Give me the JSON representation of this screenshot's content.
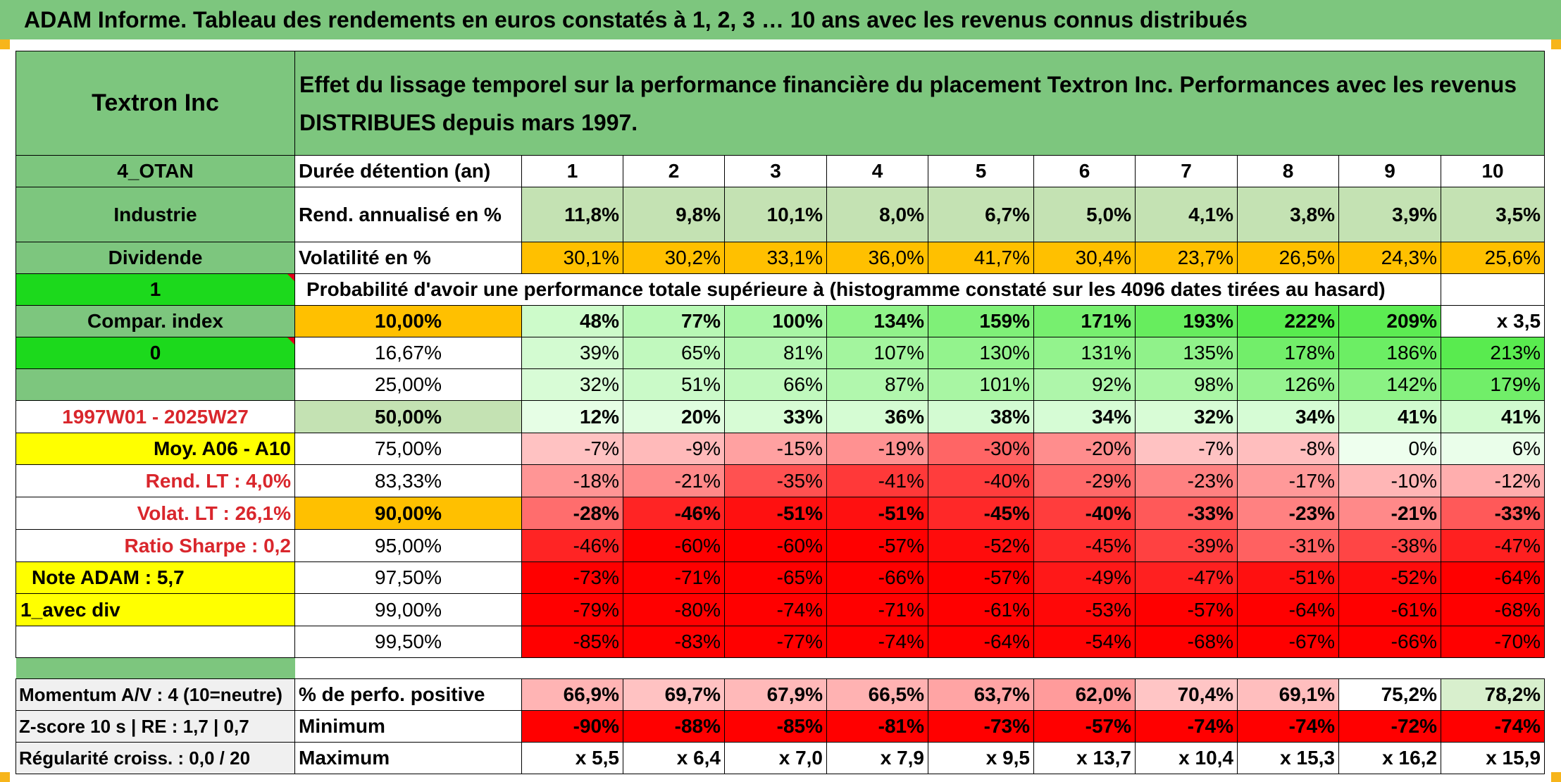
{
  "banner": "ADAM Informe. Tableau des rendements en euros constatés à 1, 2, 3 … 10 ans avec les revenus connus distribués",
  "colors": {
    "accent_green": "#7dc67e",
    "light_green": "#c4e2b3",
    "orange": "#ffc000",
    "yellow": "#ffff00",
    "bright_green": "#1cd91c",
    "red": "#ff0000"
  },
  "header": {
    "company": "Textron Inc",
    "description": "Effet du lissage temporel sur la performance financière du placement Textron Inc. Performances avec les revenus DISTRIBUES depuis mars 1997."
  },
  "sidebar": {
    "group": "4_OTAN",
    "sector": "Industrie",
    "revenue_type": "Dividende",
    "flag_one": "1",
    "compar_index": "Compar. index",
    "flag_zero": "0",
    "period": "1997W01 - 2025W27",
    "moy": "Moy. A06 - A10",
    "rend_lt": "Rend. LT :   4,0%",
    "volat_lt": "Volat. LT :   26,1%",
    "sharpe": "Ratio Sharpe :   0,2",
    "note": "Note ADAM : 5,7",
    "avec_div": "1_avec div"
  },
  "table": {
    "duration_label": "Durée détention (an)",
    "years": [
      "1",
      "2",
      "3",
      "4",
      "5",
      "6",
      "7",
      "8",
      "9",
      "10"
    ],
    "rend_label": "Rend. annualisé en %",
    "rend": [
      "11,8%",
      "9,8%",
      "10,1%",
      "8,0%",
      "6,7%",
      "5,0%",
      "4,1%",
      "3,8%",
      "3,9%",
      "3,5%"
    ],
    "vol_label": "Volatilité en %",
    "vol": [
      "30,1%",
      "30,2%",
      "33,1%",
      "36,0%",
      "41,7%",
      "30,4%",
      "23,7%",
      "26,5%",
      "24,3%",
      "25,6%"
    ],
    "prob_title": "Probabilité d'avoir une performance totale supérieure à (histogramme constaté sur les 4096 dates tirées au hasard)",
    "prob_rows": [
      {
        "p": "10,00%",
        "v": [
          "48%",
          "77%",
          "100%",
          "134%",
          "159%",
          "171%",
          "193%",
          "222%",
          "209%",
          "x 3,5"
        ]
      },
      {
        "p": "16,67%",
        "v": [
          "39%",
          "65%",
          "81%",
          "107%",
          "130%",
          "131%",
          "135%",
          "178%",
          "186%",
          "213%"
        ]
      },
      {
        "p": "25,00%",
        "v": [
          "32%",
          "51%",
          "66%",
          "87%",
          "101%",
          "92%",
          "98%",
          "126%",
          "142%",
          "179%"
        ]
      },
      {
        "p": "50,00%",
        "v": [
          "12%",
          "20%",
          "33%",
          "36%",
          "38%",
          "34%",
          "32%",
          "34%",
          "41%",
          "41%"
        ]
      },
      {
        "p": "75,00%",
        "v": [
          "-7%",
          "-9%",
          "-15%",
          "-19%",
          "-30%",
          "-20%",
          "-7%",
          "-8%",
          "0%",
          "6%"
        ]
      },
      {
        "p": "83,33%",
        "v": [
          "-18%",
          "-21%",
          "-35%",
          "-41%",
          "-40%",
          "-29%",
          "-23%",
          "-17%",
          "-10%",
          "-12%"
        ]
      },
      {
        "p": "90,00%",
        "v": [
          "-28%",
          "-46%",
          "-51%",
          "-51%",
          "-45%",
          "-40%",
          "-33%",
          "-23%",
          "-21%",
          "-33%"
        ]
      },
      {
        "p": "95,00%",
        "v": [
          "-46%",
          "-60%",
          "-60%",
          "-57%",
          "-52%",
          "-45%",
          "-39%",
          "-31%",
          "-38%",
          "-47%"
        ]
      },
      {
        "p": "97,50%",
        "v": [
          "-73%",
          "-71%",
          "-65%",
          "-66%",
          "-57%",
          "-49%",
          "-47%",
          "-51%",
          "-52%",
          "-64%"
        ]
      },
      {
        "p": "99,00%",
        "v": [
          "-79%",
          "-80%",
          "-74%",
          "-71%",
          "-61%",
          "-53%",
          "-57%",
          "-64%",
          "-61%",
          "-68%"
        ]
      },
      {
        "p": "99,50%",
        "v": [
          "-85%",
          "-83%",
          "-77%",
          "-74%",
          "-64%",
          "-54%",
          "-68%",
          "-67%",
          "-66%",
          "-70%"
        ]
      }
    ],
    "footer": {
      "momentum": "Momentum A/V : 4 (10=neutre)",
      "zscore": "Z-score 10 s | RE : 1,7 | 0,7",
      "regularite": "Régularité croiss. : 0,0 / 20",
      "pos_label": "% de perfo. positive",
      "pos": [
        "66,9%",
        "69,7%",
        "67,9%",
        "66,5%",
        "63,7%",
        "62,0%",
        "70,4%",
        "69,1%",
        "75,2%",
        "78,2%"
      ],
      "min_label": "Minimum",
      "min": [
        "-90%",
        "-88%",
        "-85%",
        "-81%",
        "-73%",
        "-57%",
        "-74%",
        "-74%",
        "-72%",
        "-74%"
      ],
      "max_label": "Maximum",
      "max": [
        "x 5,5",
        "x 6,4",
        "x 7,0",
        "x 7,9",
        "x 9,5",
        "x 13,7",
        "x 10,4",
        "x 15,3",
        "x 16,2",
        "x 15,9"
      ]
    }
  }
}
